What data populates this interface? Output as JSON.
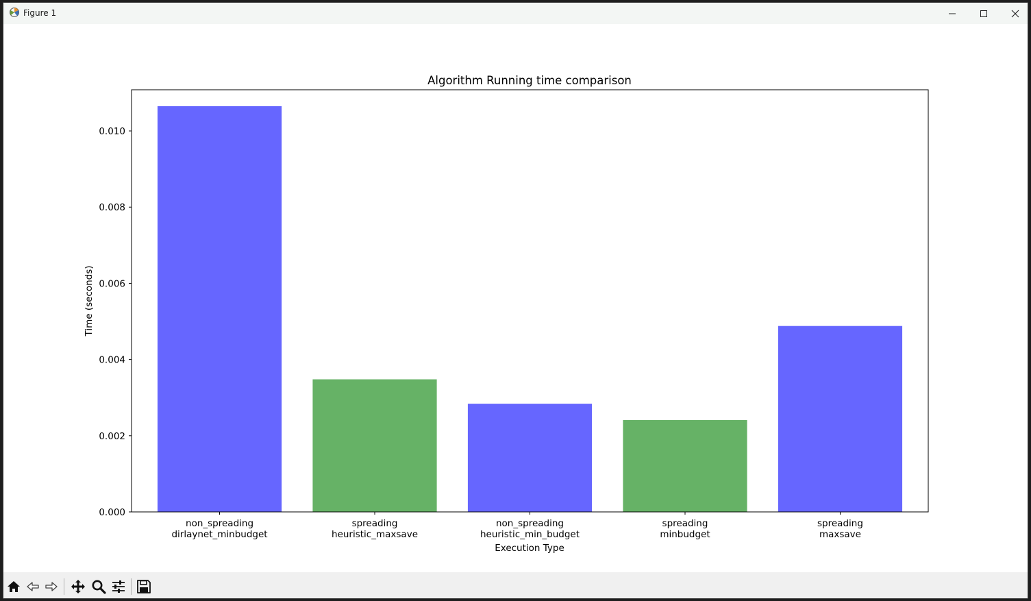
{
  "window": {
    "title": "Figure 1"
  },
  "toolbar": {
    "items": [
      {
        "name": "home-icon"
      },
      {
        "name": "back-icon"
      },
      {
        "name": "forward-icon"
      },
      {
        "name": "pan-icon"
      },
      {
        "name": "zoom-icon"
      },
      {
        "name": "configure-subplots-icon"
      },
      {
        "name": "save-icon"
      }
    ]
  },
  "chart_data": {
    "type": "bar",
    "title": "Algorithm Running time comparison",
    "xlabel": "Execution Type",
    "ylabel": "Time (seconds)",
    "ylim": [
      0,
      0.01108
    ],
    "yticks": [
      "0.000",
      "0.002",
      "0.004",
      "0.006",
      "0.008",
      "0.010"
    ],
    "grid": false,
    "categories": [
      [
        "non_spreading",
        "dirlaynet_minbudget"
      ],
      [
        "spreading",
        "heuristic_maxsave"
      ],
      [
        "non_spreading",
        "heuristic_min_budget"
      ],
      [
        "spreading",
        "minbudget"
      ],
      [
        "spreading",
        "maxsave"
      ]
    ],
    "values": [
      0.01065,
      0.00348,
      0.00284,
      0.00241,
      0.00488
    ],
    "colors": [
      "#6666ff",
      "#66b266",
      "#6666ff",
      "#66b266",
      "#6666ff"
    ]
  }
}
